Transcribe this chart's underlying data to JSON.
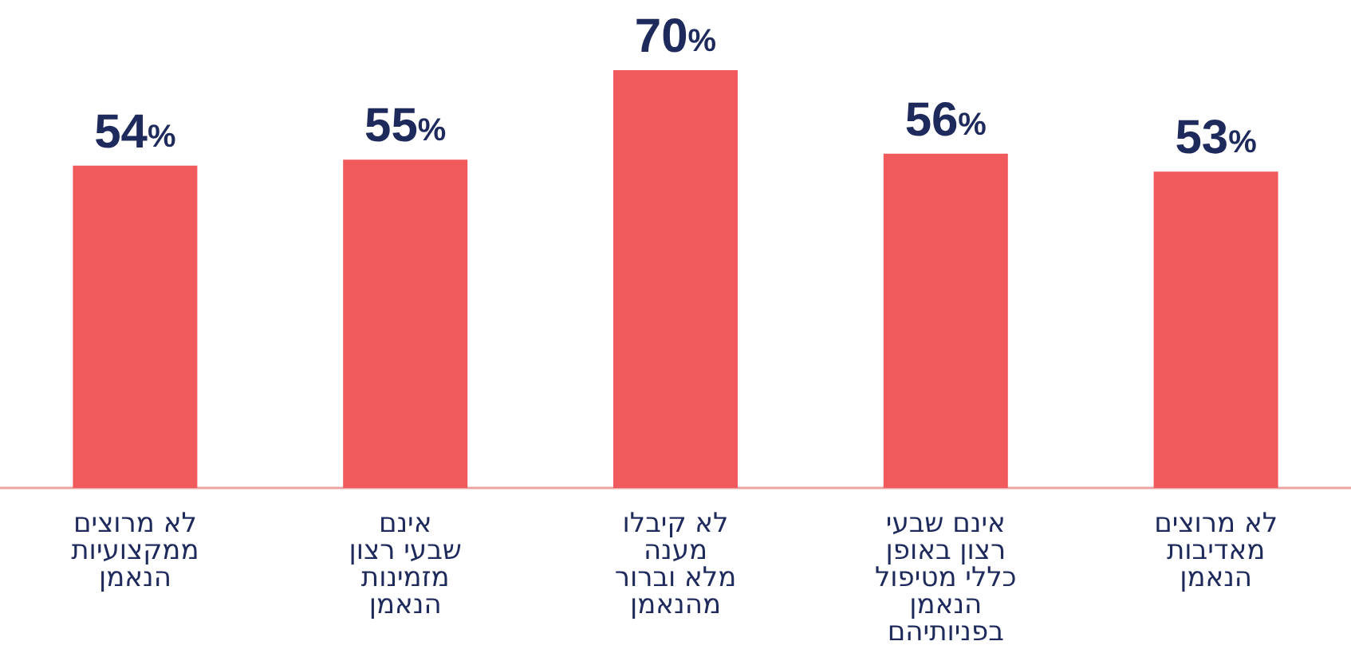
{
  "chart_data": {
    "type": "bar",
    "categories": [
      "לא מרוצים\nממקצועיות\nהנאמן",
      "אינם\nשבעי רצון\nמזמינות\nהנאמן",
      "לא קיבלו\nמענה\nמלא וברור\nמהנאמן",
      "אינם שבעי\nרצון באופן\nכללי מטיפול\nהנאמן\nבפניותיהם",
      "לא מרוצים\nמאדיבות\nהנאמן"
    ],
    "values": [
      54,
      55,
      70,
      56,
      53
    ],
    "value_labels": [
      "54%",
      "55%",
      "70%",
      "56%",
      "53%"
    ],
    "color": "#f05a5c"
  }
}
